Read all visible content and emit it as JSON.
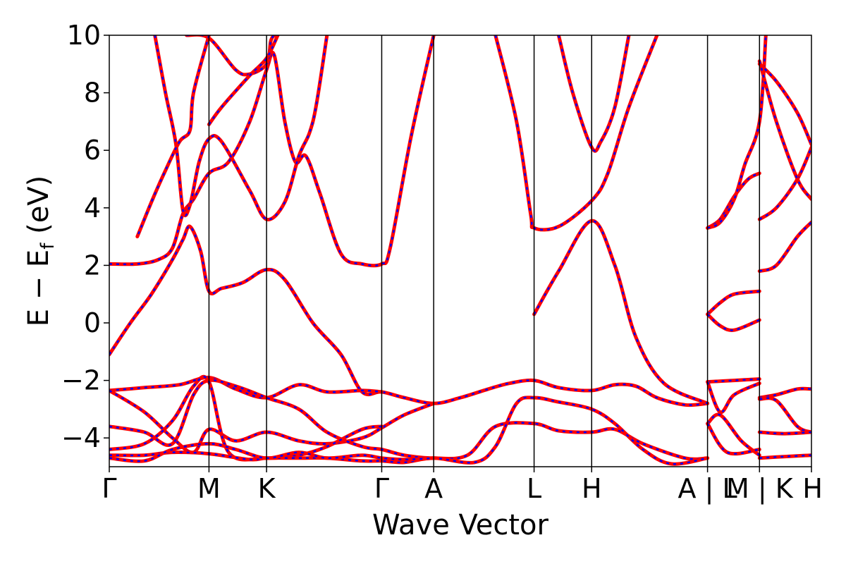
{
  "chart_data": {
    "type": "line",
    "xlabel": "Wave Vector",
    "ylabel_parts": [
      "E  −  E",
      "f",
      " (eV)"
    ],
    "ylim": [
      -5,
      10
    ],
    "y_ticks": [
      10,
      8,
      6,
      4,
      2,
      0,
      -2,
      -4
    ],
    "y_tick_labels": [
      "10",
      "8",
      "6",
      "4",
      "2",
      "0",
      "−2",
      "−4"
    ],
    "k_points": [
      {
        "label": "Γ",
        "x": 0.0
      },
      {
        "label": "M",
        "x": 0.142
      },
      {
        "label": "K",
        "x": 0.224
      },
      {
        "label": "Γ",
        "x": 0.388
      },
      {
        "label": "A",
        "x": 0.462
      },
      {
        "label": "L",
        "x": 0.605
      },
      {
        "label": "H",
        "x": 0.687
      },
      {
        "label": "A | L",
        "x": 0.852
      },
      {
        "label": "M | K",
        "x": 0.926
      },
      {
        "label": "H",
        "x": 1.0
      }
    ],
    "colors": {
      "dft": "#ff0000",
      "model": "#0000ff",
      "frame": "#000000"
    },
    "bands": [
      {
        "name": "band-1",
        "points": [
          [
            0.0,
            -1.1
          ],
          [
            0.03,
            0.0
          ],
          [
            0.06,
            1.0
          ],
          [
            0.09,
            2.2
          ],
          [
            0.105,
            2.9
          ],
          [
            0.115,
            3.35
          ],
          [
            0.13,
            2.5
          ],
          [
            0.142,
            1.1
          ],
          [
            0.16,
            1.2
          ],
          [
            0.19,
            1.4
          ],
          [
            0.224,
            1.85
          ],
          [
            0.25,
            1.5
          ],
          [
            0.29,
            0.0
          ],
          [
            0.33,
            -1.1
          ],
          [
            0.36,
            -2.4
          ],
          [
            0.388,
            -2.4
          ],
          [
            0.42,
            -2.6
          ],
          [
            0.462,
            -2.8
          ],
          [
            0.5,
            -2.6
          ],
          [
            0.54,
            -2.3
          ],
          [
            0.57,
            -2.1
          ],
          [
            0.605,
            -2.0
          ],
          [
            0.64,
            -2.25
          ],
          [
            0.687,
            -2.35
          ],
          [
            0.72,
            -2.15
          ],
          [
            0.75,
            -2.2
          ],
          [
            0.78,
            -2.6
          ],
          [
            0.82,
            -2.85
          ],
          [
            0.852,
            -2.8
          ]
        ]
      },
      {
        "name": "band-2",
        "points": [
          [
            0.0,
            2.05
          ],
          [
            0.04,
            2.05
          ],
          [
            0.07,
            2.2
          ],
          [
            0.09,
            2.6
          ],
          [
            0.105,
            3.8
          ],
          [
            0.12,
            4.3
          ],
          [
            0.142,
            5.2
          ],
          [
            0.17,
            5.6
          ],
          [
            0.2,
            7.0
          ],
          [
            0.224,
            8.8
          ],
          [
            0.235,
            9.3
          ],
          [
            0.25,
            7.0
          ],
          [
            0.265,
            5.6
          ],
          [
            0.28,
            5.8
          ],
          [
            0.3,
            4.5
          ],
          [
            0.33,
            2.4
          ],
          [
            0.36,
            2.05
          ],
          [
            0.388,
            2.05
          ],
          [
            0.4,
            2.6
          ],
          [
            0.43,
            6.5
          ],
          [
            0.462,
            10.0
          ]
        ]
      },
      {
        "name": "band-3",
        "points": [
          [
            0.0,
            -2.35
          ],
          [
            0.05,
            -2.25
          ],
          [
            0.1,
            -2.15
          ],
          [
            0.142,
            -1.9
          ],
          [
            0.18,
            -2.3
          ],
          [
            0.224,
            -2.6
          ],
          [
            0.27,
            -2.15
          ],
          [
            0.31,
            -2.4
          ],
          [
            0.36,
            -2.35
          ],
          [
            0.388,
            -2.4
          ]
        ]
      },
      {
        "name": "band-4",
        "points": [
          [
            0.0,
            -2.35
          ],
          [
            0.05,
            -3.1
          ],
          [
            0.09,
            -4.0
          ],
          [
            0.12,
            -4.5
          ],
          [
            0.142,
            -3.7
          ],
          [
            0.18,
            -4.1
          ],
          [
            0.224,
            -3.8
          ],
          [
            0.27,
            -4.1
          ],
          [
            0.31,
            -4.2
          ],
          [
            0.36,
            -4.0
          ],
          [
            0.388,
            -3.65
          ],
          [
            0.42,
            -3.2
          ],
          [
            0.462,
            -2.8
          ]
        ]
      },
      {
        "name": "band-5",
        "points": [
          [
            0.0,
            -3.6
          ],
          [
            0.05,
            -3.8
          ],
          [
            0.09,
            -4.2
          ],
          [
            0.12,
            -2.5
          ],
          [
            0.142,
            -2.0
          ],
          [
            0.18,
            -2.2
          ],
          [
            0.224,
            -2.6
          ],
          [
            0.27,
            -3.0
          ],
          [
            0.31,
            -3.8
          ],
          [
            0.36,
            -4.3
          ],
          [
            0.388,
            -4.4
          ],
          [
            0.42,
            -4.6
          ],
          [
            0.462,
            -4.7
          ],
          [
            0.51,
            -4.6
          ],
          [
            0.55,
            -3.6
          ],
          [
            0.605,
            -3.5
          ],
          [
            0.64,
            -3.75
          ],
          [
            0.687,
            -3.8
          ],
          [
            0.72,
            -3.7
          ],
          [
            0.76,
            -4.2
          ],
          [
            0.82,
            -4.7
          ],
          [
            0.852,
            -4.7
          ]
        ]
      },
      {
        "name": "band-6",
        "points": [
          [
            0.0,
            -4.4
          ],
          [
            0.05,
            -4.2
          ],
          [
            0.09,
            -3.4
          ],
          [
            0.12,
            -2.2
          ],
          [
            0.142,
            -2.05
          ],
          [
            0.17,
            -4.5
          ],
          [
            0.224,
            -4.7
          ],
          [
            0.27,
            -4.6
          ],
          [
            0.31,
            -4.3
          ],
          [
            0.36,
            -3.7
          ],
          [
            0.388,
            -3.6
          ]
        ]
      },
      {
        "name": "band-7",
        "points": [
          [
            0.0,
            -4.6
          ],
          [
            0.05,
            -4.6
          ],
          [
            0.09,
            -4.5
          ],
          [
            0.142,
            -4.55
          ],
          [
            0.2,
            -4.75
          ],
          [
            0.224,
            -4.7
          ],
          [
            0.27,
            -4.7
          ],
          [
            0.31,
            -4.7
          ],
          [
            0.36,
            -4.8
          ],
          [
            0.388,
            -4.8
          ],
          [
            0.42,
            -4.85
          ],
          [
            0.462,
            -4.7
          ],
          [
            0.52,
            -4.85
          ],
          [
            0.55,
            -4.3
          ],
          [
            0.58,
            -2.8
          ],
          [
            0.605,
            -2.6
          ],
          [
            0.64,
            -2.75
          ],
          [
            0.687,
            -3.0
          ],
          [
            0.72,
            -3.5
          ],
          [
            0.76,
            -4.4
          ],
          [
            0.8,
            -4.9
          ],
          [
            0.852,
            -4.7
          ]
        ]
      },
      {
        "name": "band-8",
        "points": [
          [
            0.0,
            -4.7
          ],
          [
            0.05,
            -4.8
          ],
          [
            0.09,
            -4.4
          ],
          [
            0.142,
            -4.2
          ],
          [
            0.18,
            -4.4
          ],
          [
            0.224,
            -4.7
          ],
          [
            0.27,
            -4.5
          ],
          [
            0.31,
            -4.7
          ],
          [
            0.36,
            -4.6
          ],
          [
            0.388,
            -4.7
          ],
          [
            0.42,
            -4.75
          ],
          [
            0.462,
            -4.7
          ]
        ]
      },
      {
        "name": "band-9",
        "points": [
          [
            0.065,
            10.0
          ],
          [
            0.08,
            8.0
          ],
          [
            0.095,
            6.2
          ],
          [
            0.105,
            3.9
          ],
          [
            0.115,
            4.1
          ],
          [
            0.128,
            5.6
          ],
          [
            0.142,
            6.4
          ],
          [
            0.16,
            6.3
          ],
          [
            0.2,
            4.6
          ],
          [
            0.224,
            3.6
          ],
          [
            0.25,
            4.2
          ],
          [
            0.27,
            5.8
          ],
          [
            0.285,
            6.6
          ],
          [
            0.295,
            7.6
          ],
          [
            0.31,
            10.0
          ]
        ]
      },
      {
        "name": "band-10",
        "points": [
          [
            0.11,
            10.0
          ],
          [
            0.142,
            9.9
          ],
          [
            0.18,
            8.8
          ],
          [
            0.2,
            8.65
          ],
          [
            0.224,
            9.0
          ],
          [
            0.23,
            9.8
          ],
          [
            0.235,
            10.0
          ]
        ]
      },
      {
        "name": "band-11",
        "points": [
          [
            0.142,
            6.9
          ],
          [
            0.16,
            7.5
          ],
          [
            0.2,
            8.6
          ],
          [
            0.224,
            9.2
          ],
          [
            0.24,
            10.0
          ]
        ]
      },
      {
        "name": "band-12",
        "points": [
          [
            0.142,
            10.0
          ],
          [
            0.12,
            8.0
          ],
          [
            0.115,
            6.7
          ],
          [
            0.1,
            6.3
          ],
          [
            0.08,
            5.3
          ],
          [
            0.06,
            4.2
          ],
          [
            0.04,
            3.0
          ]
        ]
      },
      {
        "name": "band-13",
        "points": [
          [
            0.55,
            10.0
          ],
          [
            0.58,
            7.0
          ],
          [
            0.6,
            3.8
          ],
          [
            0.605,
            3.3
          ],
          [
            0.64,
            3.35
          ],
          [
            0.687,
            4.25
          ],
          [
            0.71,
            5.2
          ],
          [
            0.74,
            7.5
          ],
          [
            0.78,
            10.0
          ]
        ]
      },
      {
        "name": "band-14",
        "points": [
          [
            0.605,
            0.3
          ],
          [
            0.64,
            1.8
          ],
          [
            0.687,
            3.55
          ],
          [
            0.72,
            2.0
          ],
          [
            0.75,
            -0.5
          ],
          [
            0.79,
            -2.1
          ],
          [
            0.852,
            -2.8
          ]
        ]
      },
      {
        "name": "band-15",
        "points": [
          [
            0.64,
            10.0
          ],
          [
            0.66,
            8.0
          ],
          [
            0.687,
            6.1
          ],
          [
            0.7,
            6.3
          ],
          [
            0.72,
            7.5
          ],
          [
            0.74,
            10.0
          ]
        ]
      },
      {
        "name": "band-16",
        "points": [
          [
            0.852,
            3.3
          ],
          [
            0.87,
            3.6
          ],
          [
            0.89,
            4.4
          ],
          [
            0.91,
            5.0
          ],
          [
            0.926,
            5.2
          ]
        ]
      },
      {
        "name": "band-17",
        "points": [
          [
            0.852,
            3.3
          ],
          [
            0.87,
            3.5
          ],
          [
            0.89,
            4.3
          ],
          [
            0.905,
            5.5
          ],
          [
            0.926,
            7.0
          ],
          [
            0.935,
            10.0
          ]
        ]
      },
      {
        "name": "band-18",
        "points": [
          [
            0.852,
            0.3
          ],
          [
            0.87,
            0.7
          ],
          [
            0.89,
            1.0
          ],
          [
            0.926,
            1.1
          ]
        ]
      },
      {
        "name": "band-19",
        "points": [
          [
            0.852,
            0.3
          ],
          [
            0.87,
            -0.1
          ],
          [
            0.89,
            -0.25
          ],
          [
            0.926,
            0.1
          ]
        ]
      },
      {
        "name": "band-20",
        "points": [
          [
            0.852,
            -2.05
          ],
          [
            0.89,
            -2.0
          ],
          [
            0.926,
            -1.95
          ]
        ]
      },
      {
        "name": "band-21",
        "points": [
          [
            0.852,
            -2.05
          ],
          [
            0.87,
            -3.1
          ],
          [
            0.89,
            -2.5
          ],
          [
            0.926,
            -2.1
          ]
        ]
      },
      {
        "name": "band-22",
        "points": [
          [
            0.852,
            -3.5
          ],
          [
            0.87,
            -3.2
          ],
          [
            0.9,
            -4.1
          ],
          [
            0.926,
            -4.6
          ]
        ]
      },
      {
        "name": "band-23",
        "points": [
          [
            0.852,
            -3.5
          ],
          [
            0.88,
            -4.5
          ],
          [
            0.926,
            -4.4
          ]
        ]
      },
      {
        "name": "band-24",
        "points": [
          [
            0.926,
            3.6
          ],
          [
            0.95,
            4.0
          ],
          [
            0.98,
            5.0
          ],
          [
            1.0,
            6.1
          ]
        ]
      },
      {
        "name": "band-25",
        "points": [
          [
            0.926,
            9.0
          ],
          [
            0.95,
            8.4
          ],
          [
            0.98,
            7.3
          ],
          [
            1.0,
            6.2
          ]
        ]
      },
      {
        "name": "band-26",
        "points": [
          [
            0.926,
            9.1
          ],
          [
            0.95,
            7.0
          ],
          [
            0.98,
            5.0
          ],
          [
            1.0,
            4.3
          ]
        ]
      },
      {
        "name": "band-27",
        "points": [
          [
            0.926,
            1.8
          ],
          [
            0.95,
            2.0
          ],
          [
            0.98,
            3.0
          ],
          [
            1.0,
            3.5
          ]
        ]
      },
      {
        "name": "band-28",
        "points": [
          [
            0.926,
            -2.6
          ],
          [
            0.95,
            -2.5
          ],
          [
            0.98,
            -2.3
          ],
          [
            1.0,
            -2.3
          ]
        ]
      },
      {
        "name": "band-29",
        "points": [
          [
            0.926,
            -2.65
          ],
          [
            0.95,
            -2.7
          ],
          [
            0.98,
            -3.6
          ],
          [
            1.0,
            -3.8
          ]
        ]
      },
      {
        "name": "band-30",
        "points": [
          [
            0.926,
            -3.8
          ],
          [
            0.96,
            -3.85
          ],
          [
            1.0,
            -3.8
          ]
        ]
      },
      {
        "name": "band-31",
        "points": [
          [
            0.926,
            -4.7
          ],
          [
            0.96,
            -4.65
          ],
          [
            1.0,
            -4.6
          ]
        ]
      }
    ]
  }
}
